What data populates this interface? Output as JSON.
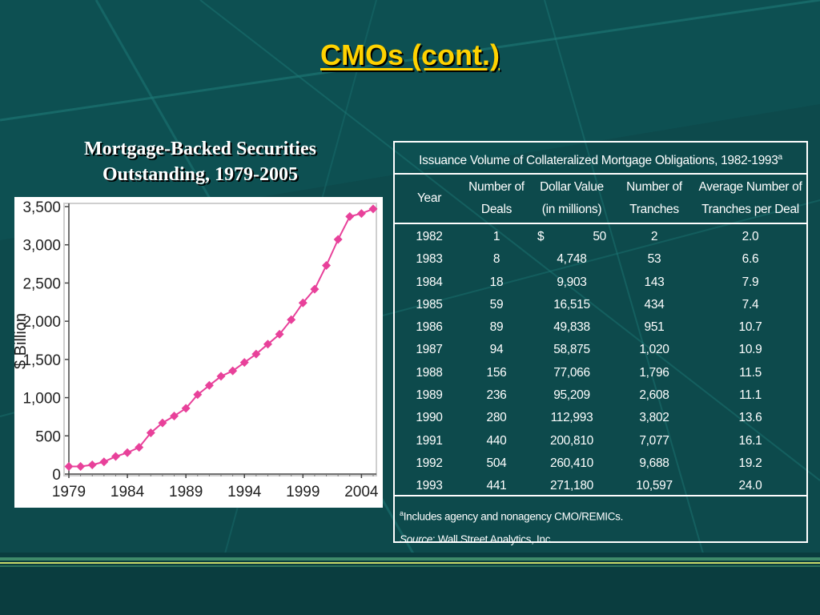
{
  "slide": {
    "title": "CMOs (cont.)"
  },
  "colors": {
    "title": "#ffd200",
    "marker": "#e8419a",
    "background": "#0d4a4c"
  },
  "chart_data": {
    "type": "line",
    "title_line1": "Mortgage-Backed Securities",
    "title_line2": "Outstanding, 1979-2005",
    "ylabel": "$ Billion",
    "xlabel": "",
    "ylim": [
      0,
      3500
    ],
    "xlim": [
      1979,
      2005
    ],
    "yticks": [
      0,
      500,
      1000,
      1500,
      2000,
      2500,
      3000,
      3500
    ],
    "ytick_labels": [
      "0",
      "500",
      "1,000",
      "1,500",
      "2,000",
      "2,500",
      "3,000",
      "3,500"
    ],
    "xticks": [
      1979,
      1984,
      1989,
      1994,
      1999,
      2004
    ],
    "xtick_labels": [
      "1979",
      "1984",
      "1989",
      "1994",
      "1999",
      "2004"
    ],
    "grid": false,
    "x": [
      1979,
      1980,
      1981,
      1982,
      1983,
      1984,
      1985,
      1986,
      1987,
      1988,
      1989,
      1990,
      1991,
      1992,
      1993,
      1994,
      1995,
      1996,
      1997,
      1998,
      1999,
      2000,
      2001,
      2002,
      2003,
      2004,
      2005
    ],
    "values": [
      100,
      100,
      120,
      160,
      230,
      280,
      350,
      540,
      670,
      760,
      860,
      1040,
      1160,
      1280,
      1350,
      1460,
      1570,
      1700,
      1830,
      2020,
      2240,
      2420,
      2730,
      3070,
      3370,
      3410,
      3470
    ]
  },
  "table": {
    "caption": "Issuance Volume of Collateralized Mortgage Obligations, 1982-1993",
    "caption_sup": "a",
    "headers": {
      "year": "Year",
      "deals_l1": "Number of",
      "deals_l2": "Deals",
      "value_l1": "Dollar Value",
      "value_l2": "(in millions)",
      "tranches_l1": "Number of",
      "tranches_l2": "Tranches",
      "avg_l1": "Average Number of",
      "avg_l2": "Tranches per Deal"
    },
    "currency_symbol": "$",
    "rows": [
      {
        "year": "1982",
        "deals": "1",
        "value": "50",
        "tranches": "2",
        "avg": "2.0"
      },
      {
        "year": "1983",
        "deals": "8",
        "value": "4,748",
        "tranches": "53",
        "avg": "6.6"
      },
      {
        "year": "1984",
        "deals": "18",
        "value": "9,903",
        "tranches": "143",
        "avg": "7.9"
      },
      {
        "year": "1985",
        "deals": "59",
        "value": "16,515",
        "tranches": "434",
        "avg": "7.4"
      },
      {
        "year": "1986",
        "deals": "89",
        "value": "49,838",
        "tranches": "951",
        "avg": "10.7"
      },
      {
        "year": "1987",
        "deals": "94",
        "value": "58,875",
        "tranches": "1,020",
        "avg": "10.9"
      },
      {
        "year": "1988",
        "deals": "156",
        "value": "77,066",
        "tranches": "1,796",
        "avg": "11.5"
      },
      {
        "year": "1989",
        "deals": "236",
        "value": "95,209",
        "tranches": "2,608",
        "avg": "11.1"
      },
      {
        "year": "1990",
        "deals": "280",
        "value": "112,993",
        "tranches": "3,802",
        "avg": "13.6"
      },
      {
        "year": "1991",
        "deals": "440",
        "value": "200,810",
        "tranches": "7,077",
        "avg": "16.1"
      },
      {
        "year": "1992",
        "deals": "504",
        "value": "260,410",
        "tranches": "9,688",
        "avg": "19.2"
      },
      {
        "year": "1993",
        "deals": "441",
        "value": "271,180",
        "tranches": "10,597",
        "avg": "24.0"
      }
    ],
    "footnote_sup": "a",
    "footnote": "Includes agency and nonagency CMO/REMICs.",
    "source_label": "Source",
    "source_text": ": Wall Street Analytics, Inc."
  }
}
